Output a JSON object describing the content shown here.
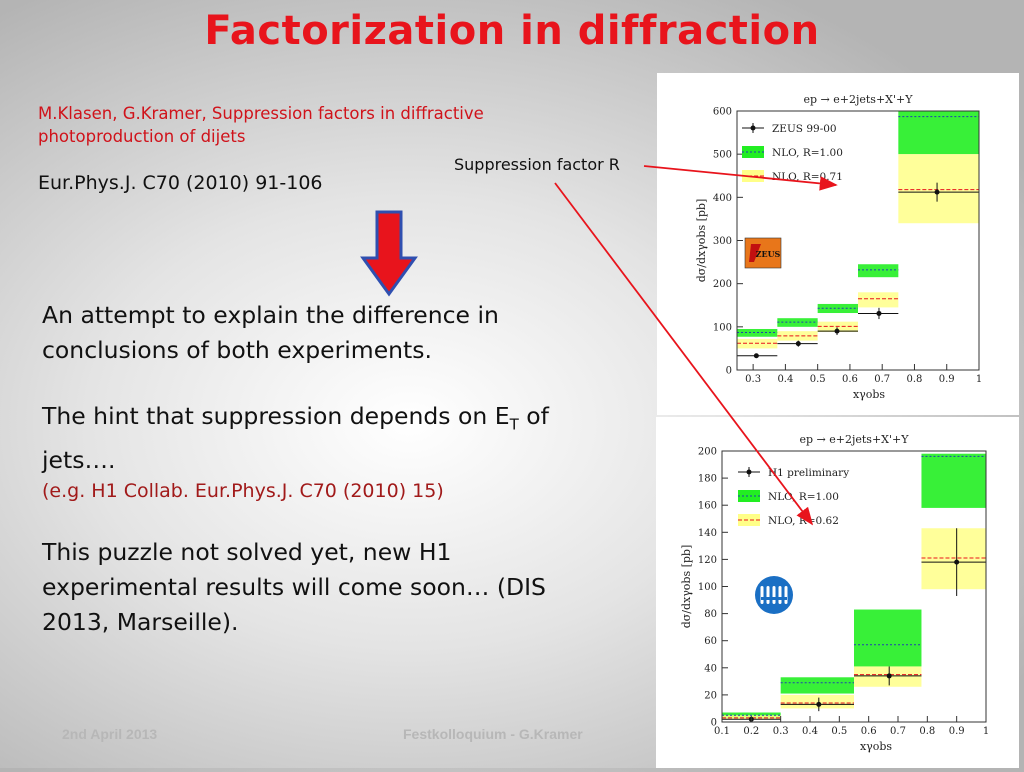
{
  "slide": {
    "title": "Factorization in diffraction",
    "reference": "M.Klasen, G.Kramer, Suppression factors in diffractive photoproduction of dijets",
    "journal": "Eur.Phys.J. C70 (2010) 91-106",
    "suppression_label": "Suppression factor R",
    "paragraph1": "An attempt to explain the difference in conclusions of both experiments.",
    "paragraph2_prefix": "The hint that suppression depends on E",
    "paragraph2_sub": "T",
    "paragraph2_suffix": " of jets….",
    "paragraph2_cite": "(e.g. H1 Collab. Eur.Phys.J. C70 (2010) 15)",
    "paragraph3": "This puzzle not solved yet, new H1 experimental results will come soon… (DIS 2013, Marseille).",
    "footer_date": "2nd April 2013",
    "footer_center": "Festkolloquium - G.Kramer",
    "colors": {
      "title": "#e8141c",
      "arrow_fill": "#e8141c",
      "arrow_stroke": "#2244aa",
      "nlo_green": "#22ee22",
      "nlo_yellow": "#ffff88"
    }
  },
  "chart_data": [
    {
      "type": "bar",
      "title": "ep → e+2jets+X'+Y",
      "xlabel": "xγobs",
      "ylabel": "dσ/dxγobs [pb]",
      "xlim": [
        0.25,
        1.0
      ],
      "ylim": [
        0,
        600
      ],
      "xticks": [
        "0.3",
        "0.4",
        "0.5",
        "0.6",
        "0.7",
        "0.8",
        "0.9",
        "1"
      ],
      "yticks": [
        "0",
        "100",
        "200",
        "300",
        "400",
        "500",
        "600"
      ],
      "legend": [
        "ZEUS 99-00",
        "NLO, R=1.00",
        "NLO, R=0.71"
      ],
      "logo": "ZEUS",
      "bins": [
        [
          0.25,
          0.375
        ],
        [
          0.375,
          0.5
        ],
        [
          0.5,
          0.625
        ],
        [
          0.625,
          0.75
        ],
        [
          0.75,
          1.0
        ]
      ],
      "series": [
        {
          "name": "NLO, R=1.00",
          "values": [
            87,
            111,
            143,
            232,
            587
          ],
          "band": [
            [
              77,
              95
            ],
            [
              100,
              120
            ],
            [
              132,
              153
            ],
            [
              215,
              245
            ],
            [
              500,
              600
            ]
          ]
        },
        {
          "name": "NLO, R=0.71",
          "values": [
            62,
            79,
            101,
            165,
            418
          ],
          "band": [
            [
              50,
              72
            ],
            [
              68,
              90
            ],
            [
              88,
              112
            ],
            [
              145,
              180
            ],
            [
              340,
              500
            ]
          ]
        },
        {
          "name": "ZEUS 99-00",
          "x": [
            0.31,
            0.44,
            0.56,
            0.69,
            0.87
          ],
          "values": [
            33,
            61,
            90,
            131,
            412
          ],
          "errors": [
            4,
            7,
            9,
            13,
            22
          ]
        }
      ]
    },
    {
      "type": "bar",
      "title": "ep → e+2jets+X'+Y",
      "xlabel": "xγobs",
      "ylabel": "dσ/dxγobs [pb]",
      "xlim": [
        0.1,
        1.0
      ],
      "ylim": [
        0,
        200
      ],
      "xticks": [
        "0.1",
        "0.2",
        "0.3",
        "0.4",
        "0.5",
        "0.6",
        "0.7",
        "0.8",
        "0.9",
        "1"
      ],
      "yticks": [
        "0",
        "20",
        "40",
        "60",
        "80",
        "100",
        "120",
        "140",
        "160",
        "180",
        "200"
      ],
      "legend": [
        "H1 preliminary",
        "NLO, R=1.00",
        "NLO, R=0.62"
      ],
      "bins": [
        [
          0.1,
          0.3
        ],
        [
          0.3,
          0.55
        ],
        [
          0.55,
          0.78
        ],
        [
          0.78,
          1.0
        ]
      ],
      "series": [
        {
          "name": "NLO, R=1.00",
          "values": [
            5,
            29,
            57,
            196
          ],
          "band": [
            [
              3,
              7
            ],
            [
              21,
              33
            ],
            [
              41,
              83
            ],
            [
              158,
              198
            ]
          ]
        },
        {
          "name": "NLO, R=0.62",
          "values": [
            3,
            14,
            35,
            121
          ],
          "band": [
            [
              2,
              5
            ],
            [
              10,
              20
            ],
            [
              26,
              41
            ],
            [
              98,
              143
            ]
          ]
        },
        {
          "name": "H1 preliminary",
          "x": [
            0.2,
            0.43,
            0.67,
            0.9
          ],
          "values": [
            2,
            13,
            34,
            118
          ],
          "errors": [
            1,
            5,
            7,
            25
          ]
        }
      ]
    }
  ]
}
